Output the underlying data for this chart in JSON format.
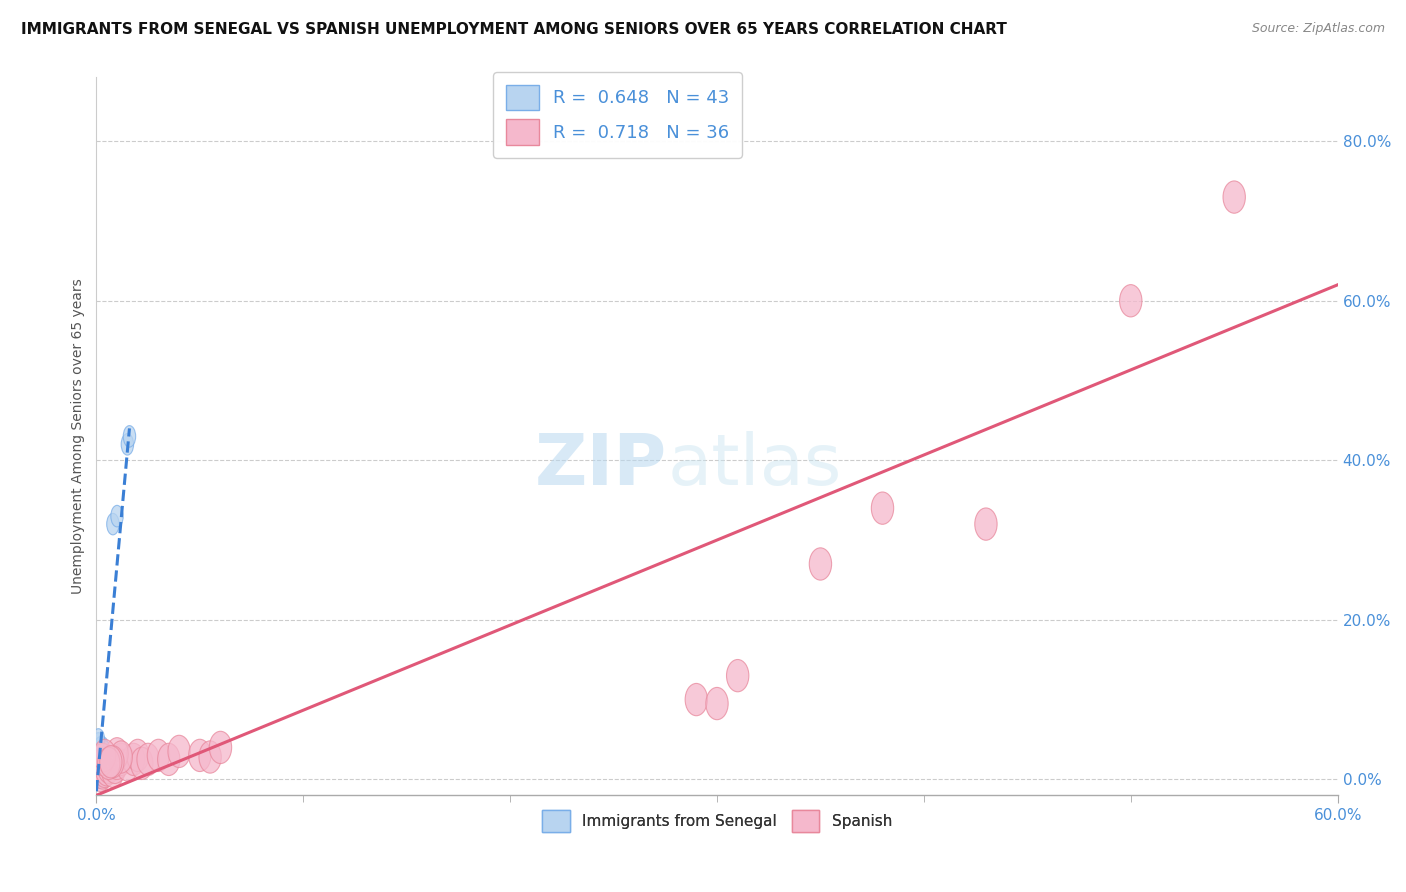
{
  "title": "IMMIGRANTS FROM SENEGAL VS SPANISH UNEMPLOYMENT AMONG SENIORS OVER 65 YEARS CORRELATION CHART",
  "source": "Source: ZipAtlas.com",
  "ylabel": "Unemployment Among Seniors over 65 years",
  "ylabel_ticks": [
    "0.0%",
    "20.0%",
    "40.0%",
    "60.0%",
    "80.0%"
  ],
  "ylabel_tick_vals": [
    0.0,
    0.2,
    0.4,
    0.6,
    0.8
  ],
  "xlim": [
    0,
    0.6
  ],
  "ylim": [
    -0.02,
    0.88
  ],
  "legend_blue_label": "R =  0.648   N = 43",
  "legend_pink_label": "R =  0.718   N = 36",
  "legend_bottom_blue": "Immigrants from Senegal",
  "legend_bottom_pink": "Spanish",
  "blue_fill": "#b8d4f0",
  "pink_fill": "#f5b8cc",
  "blue_edge": "#7aaee8",
  "pink_edge": "#e8889c",
  "blue_line_color": "#3a7fd5",
  "pink_line_color": "#e05878",
  "blue_scatter": [
    [
      0.001,
      0.005
    ],
    [
      0.001,
      0.01
    ],
    [
      0.001,
      0.015
    ],
    [
      0.002,
      0.005
    ],
    [
      0.002,
      0.008
    ],
    [
      0.002,
      0.012
    ],
    [
      0.002,
      0.018
    ],
    [
      0.003,
      0.005
    ],
    [
      0.003,
      0.008
    ],
    [
      0.003,
      0.012
    ],
    [
      0.004,
      0.005
    ],
    [
      0.004,
      0.008
    ],
    [
      0.005,
      0.005
    ],
    [
      0.005,
      0.01
    ],
    [
      0.006,
      0.008
    ],
    [
      0.001,
      0.003
    ],
    [
      0.002,
      0.003
    ],
    [
      0.001,
      0.002
    ],
    [
      0.002,
      0.002
    ],
    [
      0.003,
      0.003
    ],
    [
      0.004,
      0.003
    ],
    [
      0.002,
      0.02
    ],
    [
      0.003,
      0.025
    ],
    [
      0.004,
      0.018
    ],
    [
      0.001,
      0.03
    ],
    [
      0.002,
      0.032
    ],
    [
      0.003,
      0.04
    ],
    [
      0.001,
      0.045
    ],
    [
      0.008,
      0.32
    ],
    [
      0.01,
      0.33
    ],
    [
      0.015,
      0.42
    ],
    [
      0.016,
      0.43
    ],
    [
      0.005,
      0.005
    ],
    [
      0.003,
      0.007
    ],
    [
      0.002,
      0.025
    ],
    [
      0.004,
      0.022
    ],
    [
      0.001,
      0.008
    ],
    [
      0.003,
      0.015
    ],
    [
      0.002,
      0.04
    ],
    [
      0.004,
      0.035
    ],
    [
      0.001,
      0.05
    ],
    [
      0.005,
      0.028
    ],
    [
      0.002,
      0.012
    ]
  ],
  "pink_scatter": [
    [
      0.002,
      0.005
    ],
    [
      0.003,
      0.008
    ],
    [
      0.004,
      0.01
    ],
    [
      0.005,
      0.012
    ],
    [
      0.006,
      0.015
    ],
    [
      0.007,
      0.018
    ],
    [
      0.008,
      0.01
    ],
    [
      0.009,
      0.015
    ],
    [
      0.01,
      0.02
    ],
    [
      0.012,
      0.025
    ],
    [
      0.015,
      0.018
    ],
    [
      0.018,
      0.025
    ],
    [
      0.02,
      0.03
    ],
    [
      0.022,
      0.02
    ],
    [
      0.025,
      0.025
    ],
    [
      0.03,
      0.03
    ],
    [
      0.035,
      0.025
    ],
    [
      0.04,
      0.035
    ],
    [
      0.05,
      0.03
    ],
    [
      0.055,
      0.028
    ],
    [
      0.06,
      0.04
    ],
    [
      0.01,
      0.032
    ],
    [
      0.012,
      0.028
    ],
    [
      0.008,
      0.022
    ],
    [
      0.003,
      0.025
    ],
    [
      0.004,
      0.03
    ],
    [
      0.006,
      0.02
    ],
    [
      0.007,
      0.022
    ],
    [
      0.29,
      0.1
    ],
    [
      0.3,
      0.095
    ],
    [
      0.31,
      0.13
    ],
    [
      0.38,
      0.34
    ],
    [
      0.35,
      0.27
    ],
    [
      0.55,
      0.73
    ],
    [
      0.5,
      0.6
    ],
    [
      0.43,
      0.32
    ]
  ],
  "blue_trend_x": [
    0.0,
    0.016
  ],
  "blue_trend_y": [
    -0.015,
    0.44
  ],
  "pink_trend_x": [
    0.0,
    0.6
  ],
  "pink_trend_y": [
    -0.02,
    0.62
  ],
  "watermark_zip": "ZIP",
  "watermark_atlas": "atlas",
  "title_fontsize": 11,
  "source_fontsize": 9,
  "tick_fontsize": 11,
  "legend_fontsize": 13
}
